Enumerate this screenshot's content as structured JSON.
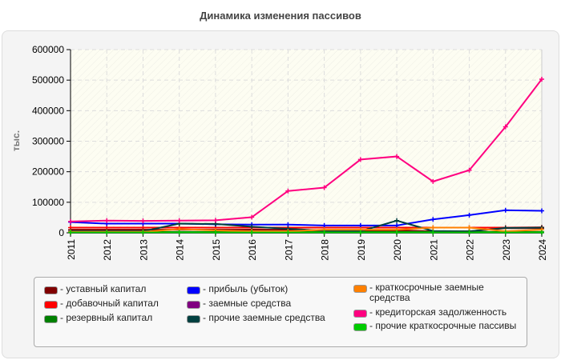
{
  "chart_data": {
    "type": "line",
    "title": "Динамика изменения пассивов",
    "ylabel": "тыс.",
    "xlabel": "",
    "ylim": [
      0,
      600000
    ],
    "yticks": [
      "0",
      "100000",
      "200000",
      "300000",
      "400000",
      "500000",
      "600000"
    ],
    "x": [
      "2011",
      "2012",
      "2013",
      "2014",
      "2015",
      "2016",
      "2017",
      "2018",
      "2019",
      "2020",
      "2021",
      "2022",
      "2023",
      "2024"
    ],
    "grid": true,
    "legend_position": "bottom",
    "series": [
      {
        "name": "уставный капитал",
        "color": "#800000",
        "values": [
          10000,
          10000,
          10000,
          10000,
          10000,
          10000,
          10000,
          8000,
          8000,
          8000,
          5000,
          5000,
          15000,
          15000
        ]
      },
      {
        "name": "добавочный капитал",
        "color": "#ff0000",
        "values": [
          17000,
          17000,
          17000,
          17000,
          17000,
          17000,
          17000,
          17000,
          17000,
          17000,
          17000,
          17000,
          17000,
          18000
        ]
      },
      {
        "name": "резервный капитал",
        "color": "#008000",
        "values": [
          3000,
          3000,
          3000,
          3000,
          3000,
          3000,
          3000,
          3000,
          3000,
          3000,
          3000,
          3000,
          3000,
          3000
        ]
      },
      {
        "name": "прибыль (убыток)",
        "color": "#0000ff",
        "values": [
          35000,
          30000,
          30000,
          30000,
          28000,
          27000,
          27000,
          24000,
          24000,
          24000,
          44000,
          58000,
          74000,
          72000
        ]
      },
      {
        "name": "заемные средства",
        "color": "#800080",
        "values": [
          0,
          0,
          0,
          0,
          0,
          0,
          0,
          0,
          0,
          0,
          0,
          0,
          0,
          0
        ]
      },
      {
        "name": "прочие заемные средства",
        "color": "#004040",
        "values": [
          5000,
          5000,
          5000,
          30000,
          29000,
          20000,
          13000,
          7000,
          5000,
          40000,
          6000,
          5000,
          16000,
          17000
        ]
      },
      {
        "name": "краткосрочные заемные средства",
        "color": "#ff8000",
        "values": [
          3000,
          3000,
          3000,
          12000,
          8000,
          5000,
          5000,
          10000,
          10000,
          10000,
          17000,
          17000,
          5000,
          10000
        ]
      },
      {
        "name": "кредиторская задолженность",
        "color": "#ff0080",
        "values": [
          37000,
          40000,
          39000,
          40000,
          41000,
          51000,
          137000,
          148000,
          240000,
          250000,
          168000,
          205000,
          347000,
          503000
        ]
      },
      {
        "name": "прочие краткосрочные пассивы",
        "color": "#00cc00",
        "values": [
          1000,
          1000,
          1000,
          1000,
          1000,
          1000,
          1000,
          1000,
          1000,
          1000,
          1000,
          1000,
          1000,
          1000
        ]
      }
    ]
  }
}
